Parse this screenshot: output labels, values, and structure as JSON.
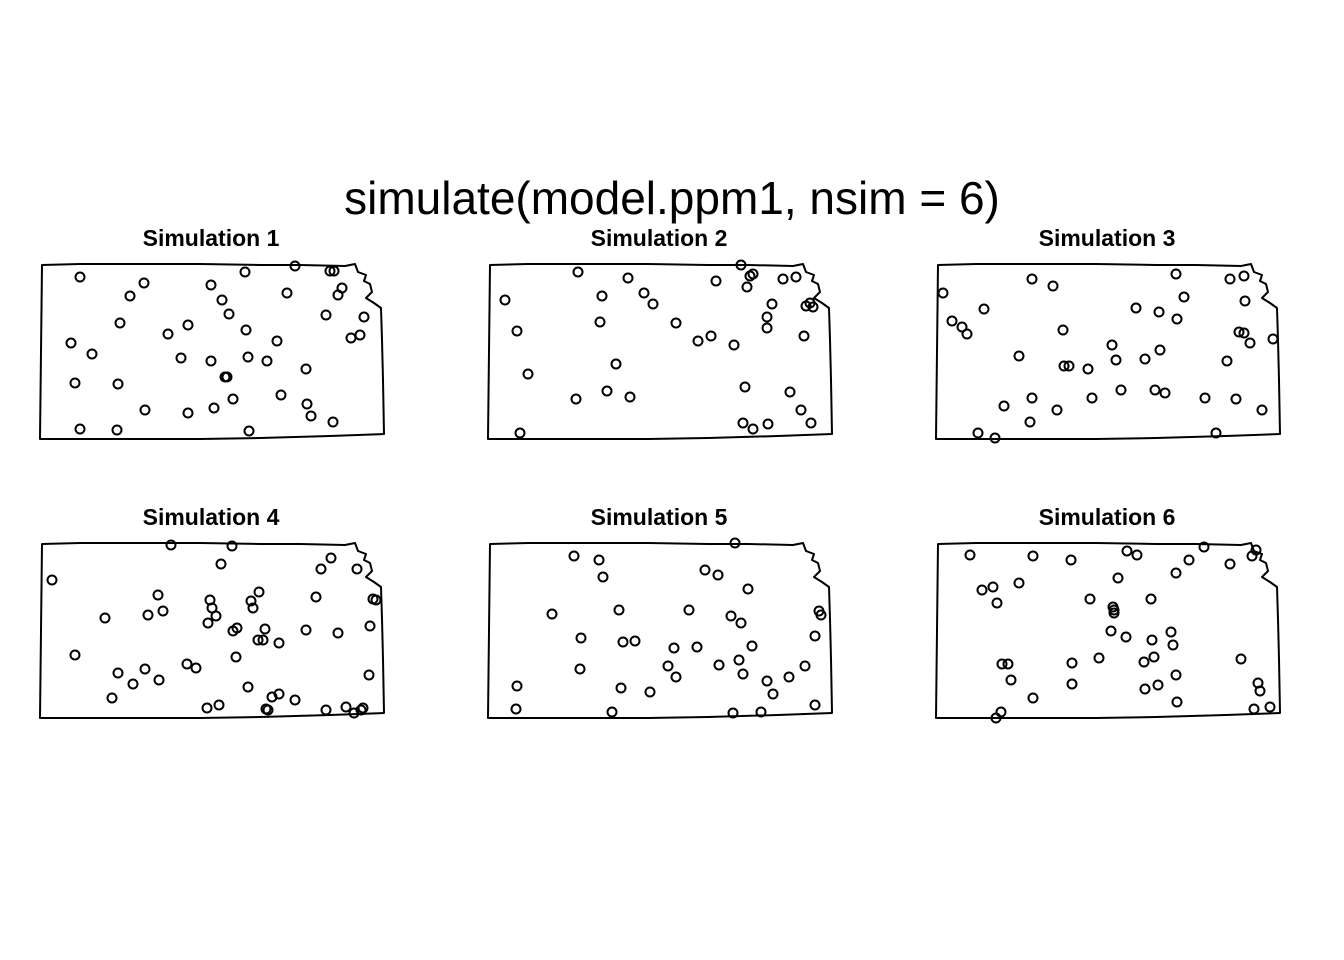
{
  "chart_data": {
    "type": "scatter",
    "title": "simulate(model.ppm1, nsim = 6)",
    "panels": [
      {
        "title": "Simulation 1",
        "points": [
          [
            80,
            277
          ],
          [
            144,
            283
          ],
          [
            130,
            296
          ],
          [
            211,
            285
          ],
          [
            245,
            272
          ],
          [
            295,
            266
          ],
          [
            330,
            271
          ],
          [
            334,
            271
          ],
          [
            342,
            288
          ],
          [
            338,
            295
          ],
          [
            287,
            293
          ],
          [
            222,
            300
          ],
          [
            229,
            314
          ],
          [
            120,
            323
          ],
          [
            188,
            325
          ],
          [
            168,
            334
          ],
          [
            246,
            330
          ],
          [
            277,
            341
          ],
          [
            326,
            315
          ],
          [
            364,
            317
          ],
          [
            351,
            338
          ],
          [
            360,
            335
          ],
          [
            71,
            343
          ],
          [
            92,
            354
          ],
          [
            181,
            358
          ],
          [
            211,
            361
          ],
          [
            248,
            357
          ],
          [
            267,
            361
          ],
          [
            306,
            369
          ],
          [
            225,
            377
          ],
          [
            227,
            377
          ],
          [
            75,
            383
          ],
          [
            118,
            384
          ],
          [
            233,
            399
          ],
          [
            281,
            395
          ],
          [
            307,
            404
          ],
          [
            214,
            408
          ],
          [
            188,
            413
          ],
          [
            145,
            410
          ],
          [
            311,
            416
          ],
          [
            333,
            422
          ],
          [
            80,
            429
          ],
          [
            117,
            430
          ],
          [
            249,
            431
          ]
        ]
      },
      {
        "title": "Simulation 2",
        "points": [
          [
            578,
            272
          ],
          [
            628,
            278
          ],
          [
            716,
            281
          ],
          [
            741,
            265
          ],
          [
            750,
            276
          ],
          [
            753,
            274
          ],
          [
            783,
            279
          ],
          [
            796,
            277
          ],
          [
            747,
            287
          ],
          [
            505,
            300
          ],
          [
            602,
            296
          ],
          [
            644,
            293
          ],
          [
            653,
            304
          ],
          [
            600,
            322
          ],
          [
            676,
            323
          ],
          [
            711,
            336
          ],
          [
            698,
            341
          ],
          [
            734,
            345
          ],
          [
            772,
            304
          ],
          [
            767,
            317
          ],
          [
            767,
            328
          ],
          [
            806,
            306
          ],
          [
            810,
            303
          ],
          [
            813,
            307
          ],
          [
            804,
            336
          ],
          [
            517,
            331
          ],
          [
            616,
            364
          ],
          [
            528,
            374
          ],
          [
            576,
            399
          ],
          [
            607,
            391
          ],
          [
            630,
            397
          ],
          [
            745,
            387
          ],
          [
            790,
            392
          ],
          [
            801,
            410
          ],
          [
            743,
            423
          ],
          [
            753,
            429
          ],
          [
            768,
            424
          ],
          [
            811,
            423
          ],
          [
            520,
            433
          ]
        ]
      },
      {
        "title": "Simulation 3",
        "points": [
          [
            1032,
            279
          ],
          [
            1053,
            286
          ],
          [
            1176,
            274
          ],
          [
            1230,
            279
          ],
          [
            1244,
            276
          ],
          [
            1184,
            297
          ],
          [
            1245,
            301
          ],
          [
            943,
            293
          ],
          [
            984,
            309
          ],
          [
            952,
            321
          ],
          [
            962,
            327
          ],
          [
            967,
            334
          ],
          [
            1063,
            330
          ],
          [
            1136,
            308
          ],
          [
            1159,
            312
          ],
          [
            1177,
            319
          ],
          [
            1112,
            345
          ],
          [
            1160,
            350
          ],
          [
            1239,
            332
          ],
          [
            1244,
            333
          ],
          [
            1250,
            343
          ],
          [
            1273,
            339
          ],
          [
            1019,
            356
          ],
          [
            1064,
            366
          ],
          [
            1069,
            366
          ],
          [
            1088,
            369
          ],
          [
            1116,
            360
          ],
          [
            1145,
            359
          ],
          [
            1227,
            361
          ],
          [
            1032,
            398
          ],
          [
            1004,
            406
          ],
          [
            1057,
            410
          ],
          [
            1092,
            398
          ],
          [
            1121,
            390
          ],
          [
            1155,
            390
          ],
          [
            1165,
            393
          ],
          [
            1205,
            398
          ],
          [
            1236,
            399
          ],
          [
            1262,
            410
          ],
          [
            1030,
            422
          ],
          [
            978,
            433
          ],
          [
            995,
            438
          ],
          [
            1216,
            433
          ]
        ]
      },
      {
        "title": "Simulation 4",
        "points": [
          [
            171,
            545
          ],
          [
            232,
            546
          ],
          [
            52,
            580
          ],
          [
            221,
            564
          ],
          [
            158,
            595
          ],
          [
            163,
            611
          ],
          [
            148,
            615
          ],
          [
            105,
            618
          ],
          [
            210,
            600
          ],
          [
            212,
            608
          ],
          [
            216,
            616
          ],
          [
            208,
            623
          ],
          [
            251,
            601
          ],
          [
            259,
            592
          ],
          [
            253,
            608
          ],
          [
            237,
            628
          ],
          [
            233,
            631
          ],
          [
            265,
            629
          ],
          [
            263,
            640
          ],
          [
            258,
            640
          ],
          [
            279,
            643
          ],
          [
            306,
            630
          ],
          [
            316,
            597
          ],
          [
            321,
            569
          ],
          [
            331,
            558
          ],
          [
            357,
            569
          ],
          [
            373,
            599
          ],
          [
            376,
            600
          ],
          [
            338,
            633
          ],
          [
            370,
            626
          ],
          [
            75,
            655
          ],
          [
            236,
            657
          ],
          [
            187,
            664
          ],
          [
            196,
            668
          ],
          [
            118,
            673
          ],
          [
            145,
            669
          ],
          [
            133,
            684
          ],
          [
            159,
            680
          ],
          [
            112,
            698
          ],
          [
            248,
            687
          ],
          [
            272,
            697
          ],
          [
            279,
            694
          ],
          [
            295,
            700
          ],
          [
            207,
            708
          ],
          [
            219,
            705
          ],
          [
            266,
            709
          ],
          [
            268,
            710
          ],
          [
            326,
            710
          ],
          [
            346,
            707
          ],
          [
            354,
            713
          ],
          [
            361,
            710
          ],
          [
            363,
            708
          ],
          [
            369,
            675
          ]
        ]
      },
      {
        "title": "Simulation 5",
        "points": [
          [
            574,
            556
          ],
          [
            599,
            560
          ],
          [
            735,
            543
          ],
          [
            705,
            570
          ],
          [
            718,
            575
          ],
          [
            603,
            577
          ],
          [
            748,
            589
          ],
          [
            552,
            614
          ],
          [
            619,
            610
          ],
          [
            689,
            610
          ],
          [
            731,
            616
          ],
          [
            741,
            623
          ],
          [
            819,
            611
          ],
          [
            821,
            615
          ],
          [
            815,
            636
          ],
          [
            581,
            638
          ],
          [
            623,
            642
          ],
          [
            635,
            641
          ],
          [
            674,
            648
          ],
          [
            697,
            647
          ],
          [
            752,
            646
          ],
          [
            668,
            666
          ],
          [
            676,
            677
          ],
          [
            719,
            665
          ],
          [
            739,
            660
          ],
          [
            743,
            674
          ],
          [
            767,
            681
          ],
          [
            773,
            694
          ],
          [
            789,
            677
          ],
          [
            805,
            666
          ],
          [
            580,
            669
          ],
          [
            517,
            686
          ],
          [
            621,
            688
          ],
          [
            650,
            692
          ],
          [
            516,
            709
          ],
          [
            612,
            712
          ],
          [
            733,
            713
          ],
          [
            761,
            712
          ],
          [
            815,
            705
          ]
        ]
      },
      {
        "title": "Simulation 6",
        "points": [
          [
            970,
            555
          ],
          [
            1033,
            556
          ],
          [
            1071,
            560
          ],
          [
            1127,
            551
          ],
          [
            1137,
            555
          ],
          [
            1176,
            573
          ],
          [
            1189,
            560
          ],
          [
            1204,
            547
          ],
          [
            1230,
            564
          ],
          [
            1252,
            556
          ],
          [
            1256,
            550
          ],
          [
            1118,
            578
          ],
          [
            982,
            590
          ],
          [
            993,
            587
          ],
          [
            1019,
            583
          ],
          [
            997,
            603
          ],
          [
            1090,
            599
          ],
          [
            1113,
            607
          ],
          [
            1114,
            610
          ],
          [
            1114,
            613
          ],
          [
            1151,
            599
          ],
          [
            1111,
            631
          ],
          [
            1126,
            637
          ],
          [
            1152,
            640
          ],
          [
            1171,
            632
          ],
          [
            1173,
            645
          ],
          [
            1241,
            659
          ],
          [
            1002,
            664
          ],
          [
            1008,
            664
          ],
          [
            1011,
            680
          ],
          [
            1072,
            663
          ],
          [
            1072,
            684
          ],
          [
            1099,
            658
          ],
          [
            1144,
            662
          ],
          [
            1154,
            657
          ],
          [
            1176,
            675
          ],
          [
            1145,
            689
          ],
          [
            1158,
            685
          ],
          [
            1177,
            702
          ],
          [
            1258,
            683
          ],
          [
            1260,
            691
          ],
          [
            1254,
            709
          ],
          [
            1270,
            707
          ],
          [
            1033,
            698
          ],
          [
            1001,
            712
          ],
          [
            996,
            718
          ]
        ]
      }
    ]
  }
}
